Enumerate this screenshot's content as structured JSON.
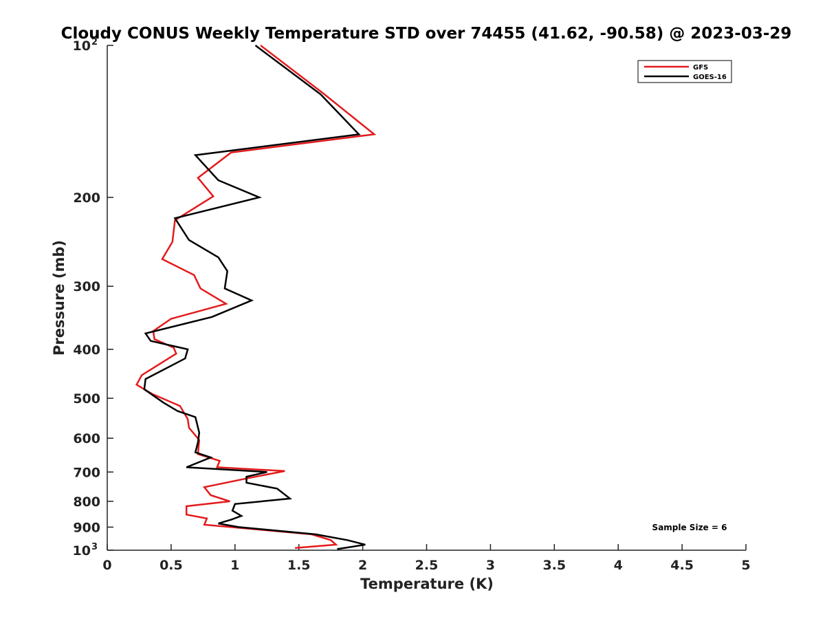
{
  "chart_data": {
    "type": "line",
    "title": "Cloudy CONUS Weekly Temperature STD over 74455 (41.62, -90.58) @ 2023-03-29",
    "xlabel": "Temperature (K)",
    "ylabel": "Pressure (mb)",
    "xlim": [
      0,
      5
    ],
    "ylim": [
      100,
      1000
    ],
    "y_scale": "log",
    "y_reversed": true,
    "grid": false,
    "legend_position": "top-right",
    "x_ticks": [
      "0",
      "0.5",
      "1",
      "1.5",
      "2",
      "2.5",
      "3",
      "3.5",
      "4",
      "4.5",
      "5"
    ],
    "y_ticks": [
      {
        "value": 100,
        "base": "10",
        "exp": "2"
      },
      {
        "value": 200,
        "label": "200"
      },
      {
        "value": 300,
        "label": "300"
      },
      {
        "value": 400,
        "label": "400"
      },
      {
        "value": 500,
        "label": "500"
      },
      {
        "value": 600,
        "label": "600"
      },
      {
        "value": 700,
        "label": "700"
      },
      {
        "value": 800,
        "label": "800"
      },
      {
        "value": 900,
        "label": "900"
      },
      {
        "value": 1000,
        "base": "10",
        "exp": "3"
      }
    ],
    "annotation": "Sample Size = 6",
    "series": [
      {
        "name": "GFS",
        "color": "#e31a1c",
        "points": [
          [
            1.2,
            100
          ],
          [
            1.7,
            125
          ],
          [
            2.09,
            150
          ],
          [
            0.97,
            163
          ],
          [
            0.71,
            183
          ],
          [
            0.83,
            199
          ],
          [
            0.53,
            222
          ],
          [
            0.51,
            245
          ],
          [
            0.43,
            265
          ],
          [
            0.68,
            285
          ],
          [
            0.73,
            303
          ],
          [
            0.93,
            325
          ],
          [
            0.5,
            348
          ],
          [
            0.36,
            368
          ],
          [
            0.37,
            382
          ],
          [
            0.52,
            397
          ],
          [
            0.54,
            408
          ],
          [
            0.27,
            450
          ],
          [
            0.23,
            470
          ],
          [
            0.35,
            490
          ],
          [
            0.57,
            518
          ],
          [
            0.63,
            550
          ],
          [
            0.64,
            572
          ],
          [
            0.72,
            605
          ],
          [
            0.71,
            645
          ],
          [
            0.88,
            665
          ],
          [
            0.86,
            685
          ],
          [
            1.39,
            697
          ],
          [
            1.1,
            720
          ],
          [
            0.76,
            750
          ],
          [
            0.81,
            778
          ],
          [
            0.96,
            800
          ],
          [
            0.62,
            818
          ],
          [
            0.62,
            850
          ],
          [
            0.78,
            865
          ],
          [
            0.76,
            890
          ],
          [
            1.6,
            930
          ],
          [
            1.75,
            955
          ],
          [
            1.79,
            975
          ],
          [
            1.47,
            990
          ]
        ]
      },
      {
        "name": "GOES-16",
        "color": "#000000",
        "points": [
          [
            1.16,
            100
          ],
          [
            1.67,
            125
          ],
          [
            1.97,
            150
          ],
          [
            0.69,
            165
          ],
          [
            0.87,
            185
          ],
          [
            1.19,
            200
          ],
          [
            0.53,
            220
          ],
          [
            0.64,
            243
          ],
          [
            0.87,
            263
          ],
          [
            0.94,
            280
          ],
          [
            0.92,
            303
          ],
          [
            1.13,
            320
          ],
          [
            0.82,
            345
          ],
          [
            0.3,
            372
          ],
          [
            0.34,
            385
          ],
          [
            0.63,
            400
          ],
          [
            0.61,
            417
          ],
          [
            0.3,
            458
          ],
          [
            0.29,
            480
          ],
          [
            0.44,
            510
          ],
          [
            0.55,
            530
          ],
          [
            0.69,
            545
          ],
          [
            0.72,
            585
          ],
          [
            0.71,
            612
          ],
          [
            0.69,
            640
          ],
          [
            0.81,
            655
          ],
          [
            0.62,
            685
          ],
          [
            1.25,
            700
          ],
          [
            1.09,
            715
          ],
          [
            1.09,
            735
          ],
          [
            1.33,
            755
          ],
          [
            1.43,
            790
          ],
          [
            1.0,
            810
          ],
          [
            0.98,
            835
          ],
          [
            1.05,
            855
          ],
          [
            0.97,
            870
          ],
          [
            0.87,
            885
          ],
          [
            1.03,
            900
          ],
          [
            1.63,
            930
          ],
          [
            1.88,
            955
          ],
          [
            2.02,
            975
          ],
          [
            1.8,
            995
          ]
        ]
      }
    ]
  }
}
